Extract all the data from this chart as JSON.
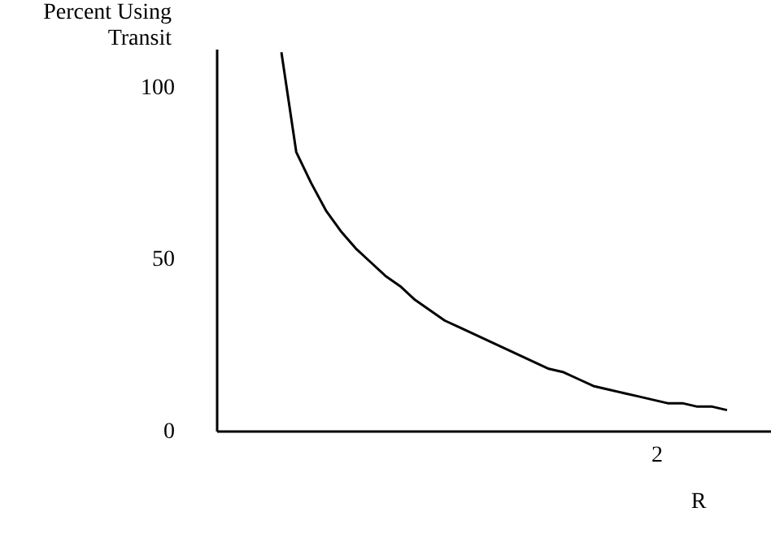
{
  "chart_data": {
    "type": "line",
    "xlabel": "R",
    "ylabel": "Percent Using Transit",
    "categories": [
      null,
      null,
      null,
      null,
      null,
      null,
      null,
      null,
      null,
      null,
      null,
      null,
      null,
      null,
      null,
      null,
      null,
      null,
      null,
      null,
      null,
      null,
      null,
      null,
      null,
      null,
      null,
      null,
      null,
      null,
      null
    ],
    "series": [
      {
        "color": "#000000",
        "values": [
          110,
          81,
          72,
          64,
          58,
          53,
          49,
          45,
          42,
          38,
          35,
          32,
          30,
          28,
          26,
          24,
          22,
          20,
          18,
          17,
          15,
          13,
          12,
          11,
          10,
          9,
          8,
          8,
          7,
          7,
          6
        ]
      }
    ],
    "ylim": [
      0,
      111
    ],
    "yticks": [
      0,
      50,
      100
    ],
    "annotations": [
      "2"
    ],
    "tick_labels": "y",
    "grid": false,
    "marker": "none",
    "line_style": "solid"
  }
}
